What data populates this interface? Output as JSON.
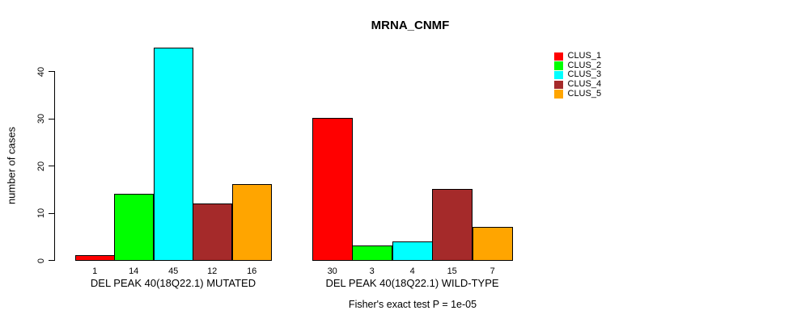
{
  "chart_data": {
    "type": "bar",
    "title": "MRNA_CNMF",
    "ylabel": "number of cases",
    "xlabel": "",
    "yticks": [
      0,
      10,
      20,
      30,
      40
    ],
    "ylim": [
      0,
      45
    ],
    "grid": false,
    "legend_position": "right",
    "bar_value_labels": true,
    "categories": [
      "DEL PEAK 40(18Q22.1) MUTATED",
      "DEL PEAK 40(18Q22.1) WILD-TYPE"
    ],
    "series": [
      {
        "name": "CLUS_1",
        "color": "#FF0000",
        "values": [
          1,
          30
        ]
      },
      {
        "name": "CLUS_2",
        "color": "#00FF00",
        "values": [
          14,
          3
        ]
      },
      {
        "name": "CLUS_3",
        "color": "#00FFFF",
        "values": [
          45,
          4
        ]
      },
      {
        "name": "CLUS_4",
        "color": "#A52A2A",
        "values": [
          12,
          15
        ]
      },
      {
        "name": "CLUS_5",
        "color": "#FFA500",
        "values": [
          16,
          7
        ]
      }
    ],
    "footer": "Fisher's exact test P = 1e-05"
  }
}
